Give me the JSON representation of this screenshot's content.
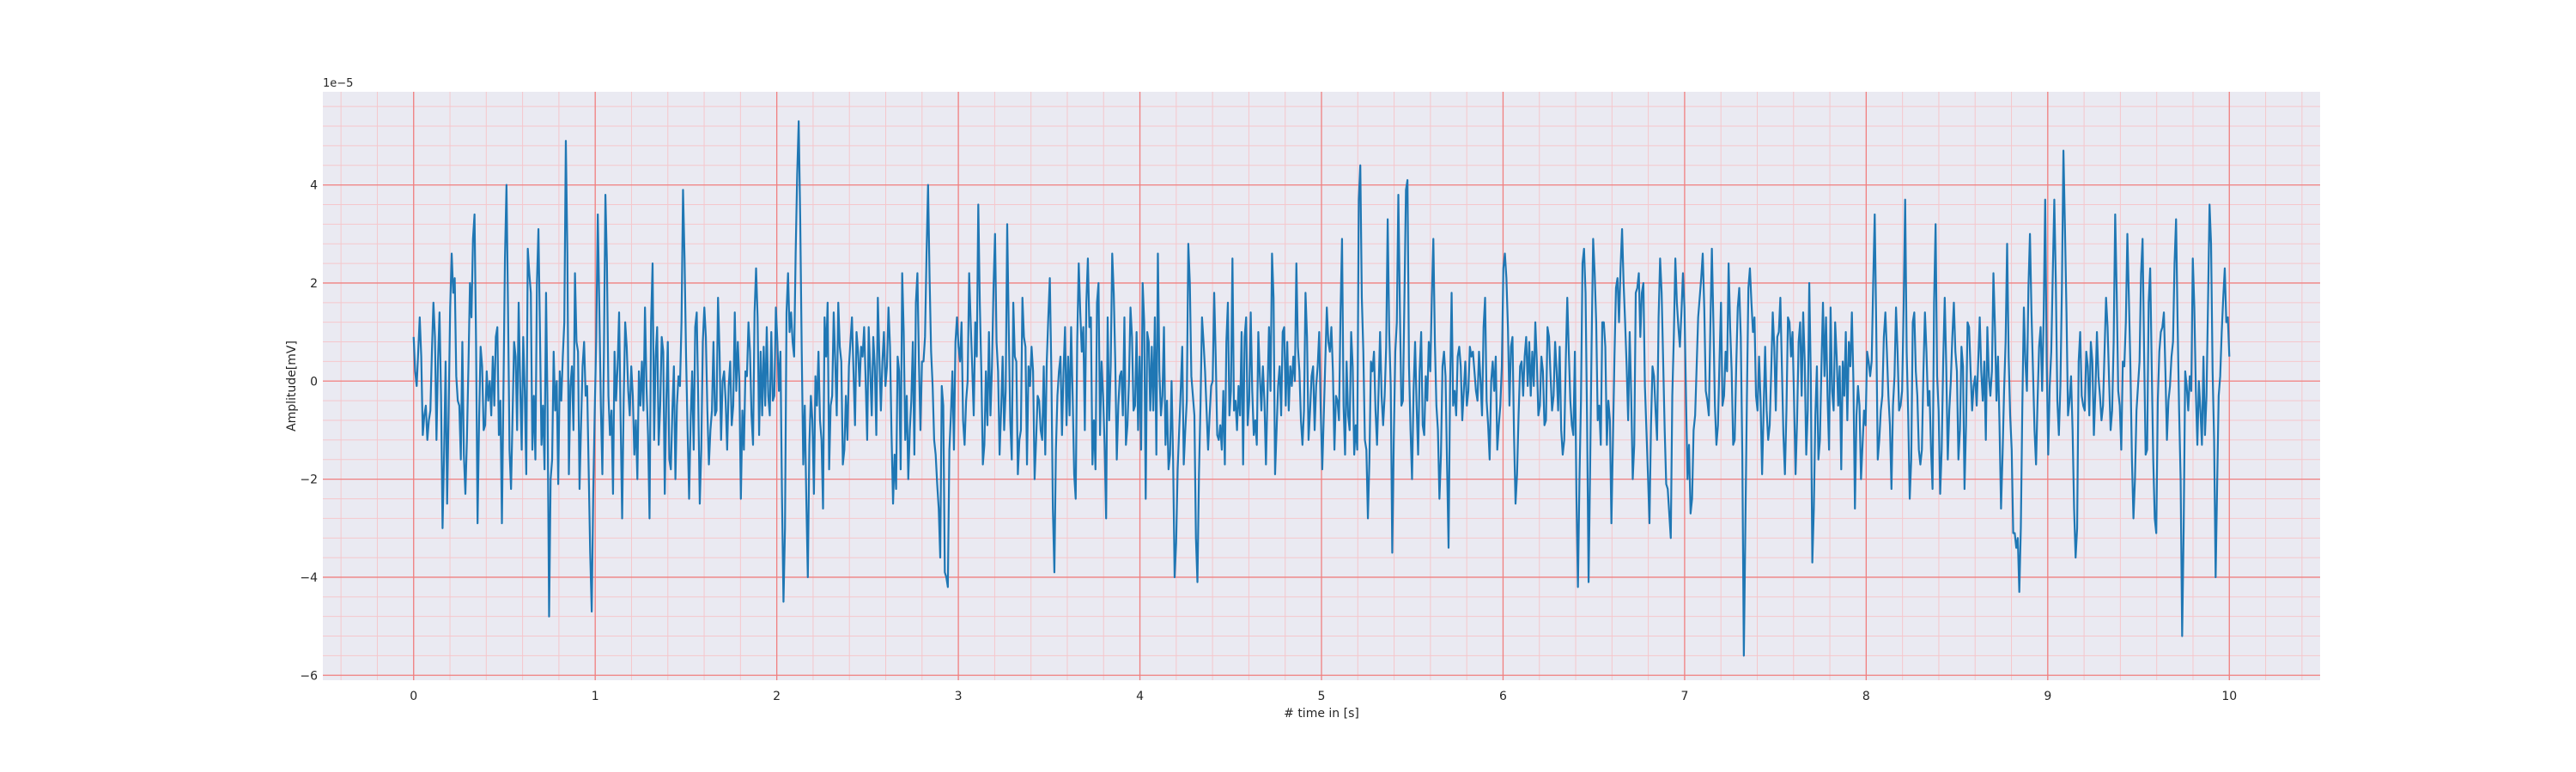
{
  "chart_data": {
    "type": "line",
    "title": "",
    "xlabel": "# time in [s]",
    "ylabel": "Amplitude[mV]",
    "y_offset_label": "1e−5",
    "xlim": [
      -0.5,
      10.5
    ],
    "ylim": [
      -6.1,
      5.9
    ],
    "x_ticks": [
      0,
      1,
      2,
      3,
      4,
      5,
      6,
      7,
      8,
      9,
      10
    ],
    "x_tick_labels": [
      "0",
      "1",
      "2",
      "3",
      "4",
      "5",
      "6",
      "7",
      "8",
      "9",
      "10"
    ],
    "y_ticks": [
      -6,
      -4,
      -2,
      0,
      2,
      4
    ],
    "y_tick_labels": [
      "−6",
      "−4",
      "−2",
      "0",
      "2",
      "4"
    ],
    "x_minor_step": 0.2,
    "y_minor_step": 0.4,
    "grid": true,
    "colors": {
      "plot_bg": "#eaeaf2",
      "major_grid": "#f08080",
      "minor_grid": "#f5c7cc",
      "line": "#1f77b4"
    },
    "series": [
      {
        "x_start": 0,
        "x_end": 10,
        "values": [
          0.9,
          0.2,
          -0.1,
          0.6,
          1.3,
          0.5,
          -1.1,
          -0.7,
          -0.5,
          -1.2,
          -0.8,
          -0.6,
          0.6,
          1.6,
          0.9,
          -1.2,
          0.4,
          1.4,
          -0.3,
          -3.0,
          -1.5,
          0.4,
          -2.5,
          -0.6,
          1.5,
          2.6,
          1.8,
          2.1,
          0.1,
          -0.4,
          -0.5,
          -1.6,
          0.8,
          -1.5,
          -2.3,
          -1.2,
          0.3,
          2.0,
          1.3,
          2.9,
          3.4,
          0.8,
          -2.9,
          -0.8,
          0.7,
          0.3,
          -1.0,
          -0.9,
          0.2,
          -0.4,
          0.0,
          -0.7,
          0.5,
          -0.5,
          0.9,
          1.1,
          -1.1,
          -0.4,
          -2.9,
          -0.2,
          2.5,
          4.0,
          1.5,
          -1.4,
          -2.2,
          -0.7,
          0.8,
          0.5,
          -1.0,
          1.6,
          -0.1,
          -1.4,
          0.9,
          -0.2,
          -1.9,
          2.7,
          2.2,
          1.8,
          -1.4,
          -0.3,
          -1.6,
          2.0,
          3.1,
          1.0,
          -1.3,
          -0.5,
          -1.8,
          1.8,
          -0.6,
          -4.8,
          -2.0,
          -1.6,
          0.6,
          -0.6,
          0.0,
          -2.1,
          0.2,
          -0.4,
          0.5,
          1.2,
          4.9,
          2.6,
          -1.9,
          -0.1,
          0.3,
          -1.0,
          2.2,
          0.8,
          0.6,
          -2.2,
          -0.9,
          0.3,
          0.8,
          -0.3,
          -0.1,
          -1.8,
          -3.5,
          -4.7,
          -2.3,
          -0.6,
          0.9,
          3.4,
          1.5,
          -0.5,
          -1.9,
          0.5,
          3.8,
          2.4,
          -0.3,
          -1.1,
          -0.6,
          -2.3,
          0.6,
          -0.4,
          0.3,
          1.4,
          -0.8,
          -2.8,
          -0.4,
          1.2,
          0.7,
          -0.2,
          -0.7,
          0.3,
          -0.3,
          -1.5,
          -0.8,
          -2.0,
          0.2,
          -0.5,
          0.4,
          -0.6,
          1.5,
          -0.1,
          -1.1,
          -2.8,
          1.2,
          2.4,
          -1.2,
          0.5,
          1.1,
          -1.3,
          -0.5,
          0.9,
          0.6,
          -2.3,
          -0.4,
          0.8,
          -1.6,
          -1.8,
          -0.6,
          0.3,
          -2.0,
          -0.5,
          0.1,
          -0.1,
          1.2,
          3.9,
          2.5,
          0.5,
          -1.0,
          -2.4,
          -0.8,
          0.2,
          -1.4,
          1.1,
          1.4,
          -0.4,
          -2.5,
          -1.4,
          0.8,
          1.5,
          0.9,
          -0.6,
          -1.7,
          -1.0,
          -0.6,
          0.8,
          -0.7,
          -0.6,
          1.7,
          0.6,
          -1.2,
          0.0,
          0.2,
          -0.4,
          -1.4,
          -0.1,
          0.4,
          -0.9,
          -0.5,
          1.4,
          -0.2,
          0.8,
          0.0,
          -2.4,
          -0.6,
          -1.4,
          0.2,
          0.1,
          1.2,
          0.6,
          -0.7,
          -1.3,
          1.4,
          2.3,
          1.3,
          -1.1,
          0.6,
          -0.7,
          0.7,
          -0.5,
          1.1,
          -0.3,
          -0.7,
          1.0,
          -0.4,
          -0.3,
          1.5,
          0.8,
          -0.2,
          0.6,
          -2.3,
          -4.5,
          -3.0,
          1.4,
          2.2,
          1.0,
          1.4,
          0.8,
          0.5,
          2.6,
          4.2,
          5.3,
          3.3,
          0.6,
          -1.7,
          -0.5,
          -2.4,
          -4.0,
          -1.3,
          -0.3,
          -0.8,
          -2.3,
          0.1,
          -0.5,
          0.6,
          -0.8,
          -1.2,
          -2.6,
          1.3,
          0.5,
          1.6,
          -1.8,
          -0.5,
          -0.3,
          1.4,
          0.4,
          -0.7,
          1.6,
          0.7,
          0.4,
          -1.7,
          -1.4,
          -0.3,
          -1.2,
          0.3,
          0.8,
          1.3,
          0.2,
          -0.9,
          1.0,
          0.6,
          -0.1,
          0.7,
          0.5,
          1.1,
          0.0,
          -1.2,
          1.1,
          0.2,
          -0.7,
          0.9,
          0.3,
          -1.1,
          1.7,
          0.5,
          -0.6,
          0.4,
          1.0,
          -0.1,
          0.3,
          1.5,
          0.7,
          -1.1,
          -2.5,
          -1.5,
          -2.2,
          0.5,
          0.2,
          -1.8,
          2.2,
          1.0,
          -1.2,
          -0.3,
          -2.0,
          -1.0,
          -0.4,
          0.8,
          -1.5,
          1.6,
          2.2,
          0.4,
          -1.0,
          0.4,
          0.4,
          0.9,
          2.6,
          4.0,
          2.1,
          0.6,
          -0.1,
          -1.2,
          -1.5,
          -2.1,
          -2.6,
          -3.6,
          -0.1,
          -0.5,
          -3.9,
          -4.0,
          -4.2,
          -1.4,
          -0.7,
          0.2,
          -1.4,
          0.8,
          1.3,
          0.7,
          0.4,
          1.2,
          -0.8,
          -1.3,
          -0.4,
          0.0,
          2.2,
          1.2,
          0.3,
          -0.7,
          1.2,
          0.5,
          3.6,
          1.6,
          0.2,
          -1.7,
          -1.3,
          0.2,
          -0.9,
          1.0,
          -0.7,
          0.3,
          1.9,
          3.0,
          0.8,
          0.2,
          -1.5,
          -0.6,
          0.5,
          -1.0,
          -0.2,
          3.2,
          1.1,
          -0.8,
          -1.6,
          1.6,
          0.5,
          0.4,
          -1.9,
          -1.2,
          -1.0,
          1.7,
          0.9,
          0.7,
          -1.7,
          0.3,
          -0.1,
          0.7,
          0.2,
          -2.0,
          -1.2,
          -0.3,
          -0.4,
          -1.0,
          -1.2,
          0.3,
          -1.5,
          0.4,
          1.3,
          2.1,
          0.2,
          -2.6,
          -3.9,
          -1.4,
          -0.3,
          0.2,
          0.5,
          -1.1,
          0.2,
          1.1,
          -0.9,
          0.5,
          -0.7,
          1.1,
          -0.3,
          -1.9,
          -2.4,
          0.8,
          2.4,
          1.4,
          0.6,
          1.1,
          -1.0,
          1.6,
          2.5,
          1.1,
          1.3,
          -1.7,
          -0.8,
          -1.8,
          1.6,
          2.0,
          -1.1,
          0.4,
          -0.3,
          -1.3,
          -2.8,
          1.3,
          -0.8,
          0.3,
          2.6,
          1.8,
          0.4,
          -1.6,
          -0.5,
          0.1,
          0.2,
          -0.7,
          1.3,
          -1.3,
          -0.9,
          0.0,
          1.5,
          0.9,
          -0.6,
          -0.5,
          1.0,
          -1.0,
          0.5,
          -1.4,
          2.0,
          1.2,
          -2.4,
          1.0,
          0.8,
          -0.6,
          0.7,
          -0.6,
          1.3,
          -1.5,
          2.6,
          0.2,
          -0.7,
          -0.3,
          1.1,
          -1.3,
          -0.4,
          -1.8,
          -1.5,
          0.0,
          -1.6,
          -4.0,
          -3.3,
          -1.8,
          -1.0,
          -0.2,
          0.7,
          -1.7,
          -1.0,
          -0.4,
          2.8,
          2.0,
          0.1,
          -0.3,
          -0.7,
          -3.2,
          -4.1,
          -1.9,
          -0.5,
          1.3,
          0.8,
          0.2,
          -0.6,
          -1.4,
          -0.7,
          -0.1,
          0.0,
          1.8,
          0.5,
          -1.1,
          -1.2,
          -0.9,
          -1.4,
          -0.2,
          -1.7,
          0.8,
          1.6,
          -0.7,
          -0.2,
          2.5,
          -0.6,
          -0.4,
          -1.0,
          -0.1,
          -0.7,
          1.0,
          -1.7,
          0.9,
          1.3,
          -0.9,
          -0.4,
          1.4,
          -0.2,
          -1.1,
          -0.8,
          -1.3,
          1.0,
          0.1,
          -0.6,
          0.3,
          -0.4,
          -1.7,
          -0.3,
          1.1,
          -0.2,
          2.6,
          1.7,
          -1.9,
          -1.0,
          -0.1,
          0.3,
          -0.7,
          1.0,
          1.1,
          -0.5,
          0.8,
          -0.6,
          0.3,
          -0.1,
          0.5,
          0.0,
          2.4,
          0.7,
          0.2,
          -0.8,
          -1.3,
          -0.6,
          1.8,
          0.9,
          -1.2,
          -0.6,
          0.1,
          0.3,
          -1.0,
          -0.1,
          0.3,
          1.0,
          -0.6,
          -1.8,
          -0.7,
          0.4,
          1.5,
          0.8,
          0.6,
          1.1,
          0.2,
          -1.4,
          -0.3,
          -0.4,
          -0.8,
          1.4,
          2.9,
          -0.5,
          -1.5,
          0.4,
          -0.7,
          -1.0,
          1.0,
          0.3,
          -1.5,
          -0.9,
          -1.4,
          3.7,
          4.4,
          1.7,
          0.6,
          -1.2,
          -1.4,
          -2.8,
          -1.6,
          0.4,
          0.2,
          0.6,
          -0.6,
          -1.3,
          -0.2,
          1.0,
          -0.3,
          -0.9,
          -0.3,
          0.7,
          3.3,
          1.0,
          -0.1,
          -3.5,
          -1.2,
          0.6,
          1.2,
          3.8,
          1.5,
          -0.5,
          -0.4,
          1.7,
          3.9,
          4.1,
          0.3,
          -1.0,
          -2.0,
          -0.2,
          0.8,
          -0.5,
          -1.5,
          0.2,
          1.0,
          -0.9,
          -1.1,
          0.1,
          -0.4,
          0.8,
          0.2,
          1.7,
          2.9,
          0.8,
          -0.5,
          -1.0,
          -2.4,
          -1.5,
          0.3,
          0.6,
          0.1,
          -1.7,
          -3.4,
          -0.1,
          1.8,
          -0.5,
          -0.2,
          -0.7,
          0.5,
          0.7,
          0.3,
          -0.8,
          -0.2,
          0.4,
          -0.5,
          -0.2,
          0.7,
          0.5,
          0.6,
          0.2,
          -0.2,
          -0.4,
          0.6,
          0.0,
          -0.7,
          1.1,
          1.7,
          -0.4,
          -0.9,
          -1.6,
          0.0,
          0.4,
          -0.2,
          0.5,
          -1.4,
          -0.9,
          -0.5,
          0.3,
          2.3,
          2.6,
          2.1,
          1.1,
          -0.5,
          0.7,
          0.9,
          -1.1,
          -2.5,
          -1.9,
          -0.7,
          0.3,
          0.4,
          -0.3,
          0.5,
          0.9,
          -0.1,
          0.8,
          -0.3,
          0.6,
          -0.1,
          1.2,
          0.4,
          -0.7,
          -0.5,
          0.5,
          0.2,
          -0.9,
          -0.8,
          1.1,
          0.9,
          0.1,
          -0.6,
          -0.3,
          0.8,
          0.2,
          -0.6,
          0.7,
          -1.0,
          -1.5,
          -1.2,
          0.4,
          1.7,
          0.6,
          -0.4,
          -0.9,
          -1.1,
          0.6,
          -2.3,
          -4.2,
          -2.0,
          -0.4,
          2.4,
          2.7,
          1.8,
          -0.8,
          -4.1,
          -1.8,
          0.8,
          2.9,
          2.2,
          1.2,
          -0.8,
          -0.5,
          -1.3,
          1.2,
          1.2,
          0.7,
          -1.3,
          -0.4,
          -0.8,
          -2.9,
          -1.2,
          0.5,
          1.9,
          2.1,
          1.2,
          2.3,
          3.1,
          2.0,
          1.2,
          0.3,
          -0.8,
          1.0,
          -0.3,
          -2.0,
          -1.3,
          1.8,
          1.9,
          2.2,
          0.9,
          1.8,
          2.0,
          -0.1,
          -1.0,
          -1.9,
          -2.9,
          -0.9,
          0.3,
          0.1,
          -0.6,
          -1.2,
          1.3,
          2.5,
          1.8,
          0.4,
          -1.0,
          -2.1,
          -2.2,
          -2.7,
          -3.2,
          -0.3,
          0.9,
          2.5,
          1.6,
          1.1,
          0.7,
          1.4,
          2.2,
          1.5,
          -0.3,
          -2.0,
          -1.3,
          -2.7,
          -2.4,
          -1.0,
          -0.7,
          0.3,
          1.3,
          1.7,
          2.1,
          2.6,
          1.5,
          -0.2,
          -0.4,
          -0.7,
          1.1,
          2.7,
          1.2,
          -0.5,
          -1.3,
          -0.9,
          0.4,
          1.6,
          -0.5,
          -0.3,
          0.6,
          0.2,
          2.4,
          1.1,
          0.2,
          -1.3,
          -1.2,
          0.3,
          1.5,
          1.9,
          0.9,
          -1.5,
          -5.6,
          -3.0,
          -0.4,
          1.9,
          2.3,
          1.6,
          1.0,
          1.3,
          -0.3,
          -0.6,
          0.5,
          -0.4,
          -1.9,
          -0.6,
          0.7,
          -0.6,
          -1.2,
          -0.9,
          0.2,
          1.4,
          0.7,
          -0.6,
          0.9,
          1.0,
          1.7,
          0.3,
          -1.1,
          -1.9,
          -0.6,
          1.3,
          1.2,
          0.5,
          1.0,
          -0.4,
          -1.9,
          -0.8,
          0.8,
          1.2,
          -0.3,
          1.4,
          0.4,
          -1.5,
          -0.6,
          2.0,
          0.1,
          -3.7,
          -2.6,
          -0.7,
          0.3,
          -1.6,
          -1.2,
          0.3,
          1.6,
          0.1,
          1.3,
          -0.3,
          -1.4,
          1.5,
          -0.2,
          -0.6,
          1.2,
          0.5,
          -0.5,
          0.3,
          -1.8,
          0.4,
          -0.3,
          1.0,
          -0.8,
          0.8,
          0.3,
          1.4,
          0.0,
          -2.6,
          -0.7,
          -0.1,
          -0.5,
          -2.0,
          -1.3,
          -0.6,
          -0.9,
          0.6,
          0.4,
          0.1,
          0.4,
          2.0,
          3.4,
          1.1,
          -1.6,
          -1.2,
          -0.6,
          -0.3,
          0.9,
          1.4,
          0.6,
          -0.3,
          -0.9,
          -2.2,
          -0.5,
          0.1,
          1.5,
          0.6,
          -0.6,
          -0.5,
          -0.2,
          1.5,
          3.7,
          0.6,
          -0.7,
          -2.4,
          -1.6,
          1.2,
          1.4,
          0.2,
          -0.3,
          -1.4,
          -1.7,
          -1.4,
          0.2,
          1.4,
          0.6,
          -0.5,
          -0.2,
          -1.4,
          -2.2,
          1.6,
          3.2,
          0.1,
          -0.6,
          -2.3,
          -1.4,
          0.4,
          1.7,
          0.3,
          -1.6,
          -0.6,
          0.0,
          0.9,
          1.6,
          0.6,
          0.2,
          -1.6,
          -1.0,
          0.7,
          0.3,
          -2.2,
          -0.9,
          1.2,
          1.1,
          0.2,
          -0.6,
          -0.1,
          0.1,
          -0.5,
          0.4,
          1.3,
          0.2,
          -0.4,
          0.4,
          -1.2,
          1.1,
          0.1,
          -0.3,
          0.2,
          2.2,
          1.1,
          -0.4,
          0.5,
          -0.9,
          -2.6,
          -1.5,
          -0.2,
          0.8,
          2.8,
          0.5,
          -0.7,
          -1.4,
          -3.1,
          -3.1,
          -3.4,
          -3.2,
          -4.3,
          -3.0,
          -0.5,
          1.5,
          0.4,
          -0.2,
          1.9,
          3.0,
          1.4,
          0.2,
          -1.0,
          -1.7,
          -0.4,
          0.7,
          1.1,
          -0.2,
          1.3,
          3.7,
          0.4,
          -1.5,
          -0.1,
          0.6,
          2.2,
          3.7,
          2.0,
          -0.4,
          -1.1,
          -0.1,
          1.9,
          4.7,
          3.1,
          1.4,
          -0.7,
          -0.4,
          0.1,
          -1.0,
          -2.6,
          -3.6,
          -3.0,
          0.4,
          1.0,
          -0.3,
          -0.5,
          -0.6,
          0.6,
          0.3,
          -0.7,
          0.8,
          0.4,
          -1.1,
          -0.2,
          1.0,
          0.1,
          -0.3,
          -0.8,
          -0.5,
          0.6,
          1.7,
          1.1,
          0.0,
          -1.0,
          -0.6,
          0.8,
          3.4,
          1.8,
          -0.2,
          -0.5,
          -1.4,
          0.4,
          0.3,
          1.2,
          3.0,
          1.7,
          0.3,
          -1.6,
          -2.8,
          -2.0,
          -0.6,
          -0.1,
          0.4,
          2.2,
          2.9,
          0.6,
          -1.5,
          -1.4,
          1.6,
          2.3,
          0.3,
          -1.6,
          -2.8,
          -3.1,
          -0.4,
          0.6,
          1.0,
          1.1,
          1.4,
          0.2,
          -1.2,
          -0.4,
          -0.1,
          0.5,
          0.8,
          2.4,
          3.3,
          1.2,
          -0.6,
          -2.0,
          -5.2,
          -3.0,
          0.2,
          -0.1,
          -0.6,
          0.1,
          -0.2,
          2.5,
          1.5,
          -0.2,
          -1.3,
          0.0,
          -0.6,
          -1.3,
          0.5,
          -1.1,
          -0.3,
          1.6,
          3.6,
          2.8,
          0.2,
          -1.2,
          -4.0,
          -2.1,
          -0.3,
          0.1,
          1.0,
          1.7,
          2.3,
          1.2,
          1.3,
          0.5
        ]
      }
    ]
  }
}
